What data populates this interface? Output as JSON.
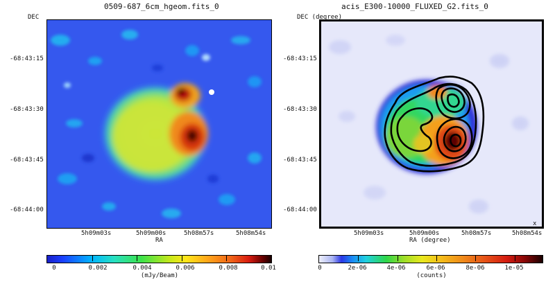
{
  "left_panel": {
    "title": "0509-687_6cm_hgeom.fits_0",
    "ylabel": "DEC",
    "xlabel": "RA",
    "dec_ticks": [
      "-68:43:15",
      "-68:43:30",
      "-68:43:45",
      "-68:44:00"
    ],
    "ra_ticks": [
      "5h09m03s",
      "5h09m00s",
      "5h08m57s",
      "5h08m54s"
    ],
    "colorbar": {
      "ticks": [
        "0",
        "0.002",
        "0.004",
        "0.006",
        "0.008",
        "0.01"
      ],
      "unit": "(mJy/Beam)",
      "scheme": "jet"
    }
  },
  "right_panel": {
    "title": "acis_E300-10000_FLUXED_G2.fits_0",
    "ylabel": "DEC (degree)",
    "xlabel": "RA (degree)",
    "dec_ticks": [
      "-68:43:15",
      "-68:43:30",
      "-68:43:45",
      "-68:44:00"
    ],
    "ra_ticks": [
      "5h09m03s",
      "5h09m00s",
      "5h08m57s",
      "5h08m54s"
    ],
    "colorbar": {
      "ticks": [
        "0",
        "2e-06",
        "4e-06",
        "6e-06",
        "8e-06",
        "1e-05"
      ],
      "unit": "(counts)",
      "scheme": "heat"
    },
    "contours": "on"
  }
}
